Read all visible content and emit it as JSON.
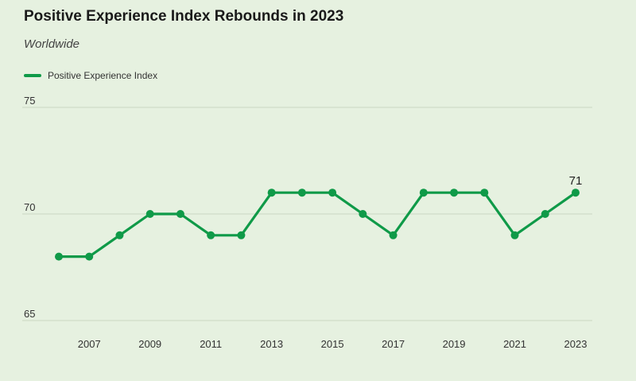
{
  "chart_data": {
    "type": "line",
    "title": "Positive Experience Index Rebounds in 2023",
    "subtitle": "Worldwide",
    "xlabel": "",
    "ylabel": "",
    "ylim": [
      65,
      75
    ],
    "yticks": [
      65,
      70,
      75
    ],
    "xticks": [
      2007,
      2009,
      2011,
      2013,
      2015,
      2017,
      2019,
      2021,
      2023
    ],
    "grid": true,
    "legend_position": "top-left",
    "series": [
      {
        "name": "Positive Experience Index",
        "color": "#0f9a48",
        "x": [
          2006,
          2007,
          2008,
          2009,
          2010,
          2011,
          2012,
          2013,
          2014,
          2015,
          2016,
          2017,
          2018,
          2019,
          2020,
          2021,
          2022,
          2023
        ],
        "values": [
          68,
          68,
          69,
          70,
          70,
          69,
          69,
          71,
          71,
          71,
          70,
          69,
          71,
          71,
          71,
          69,
          70,
          71
        ]
      }
    ],
    "annotations": [
      {
        "x": 2023,
        "y": 71,
        "text": "71"
      }
    ]
  }
}
